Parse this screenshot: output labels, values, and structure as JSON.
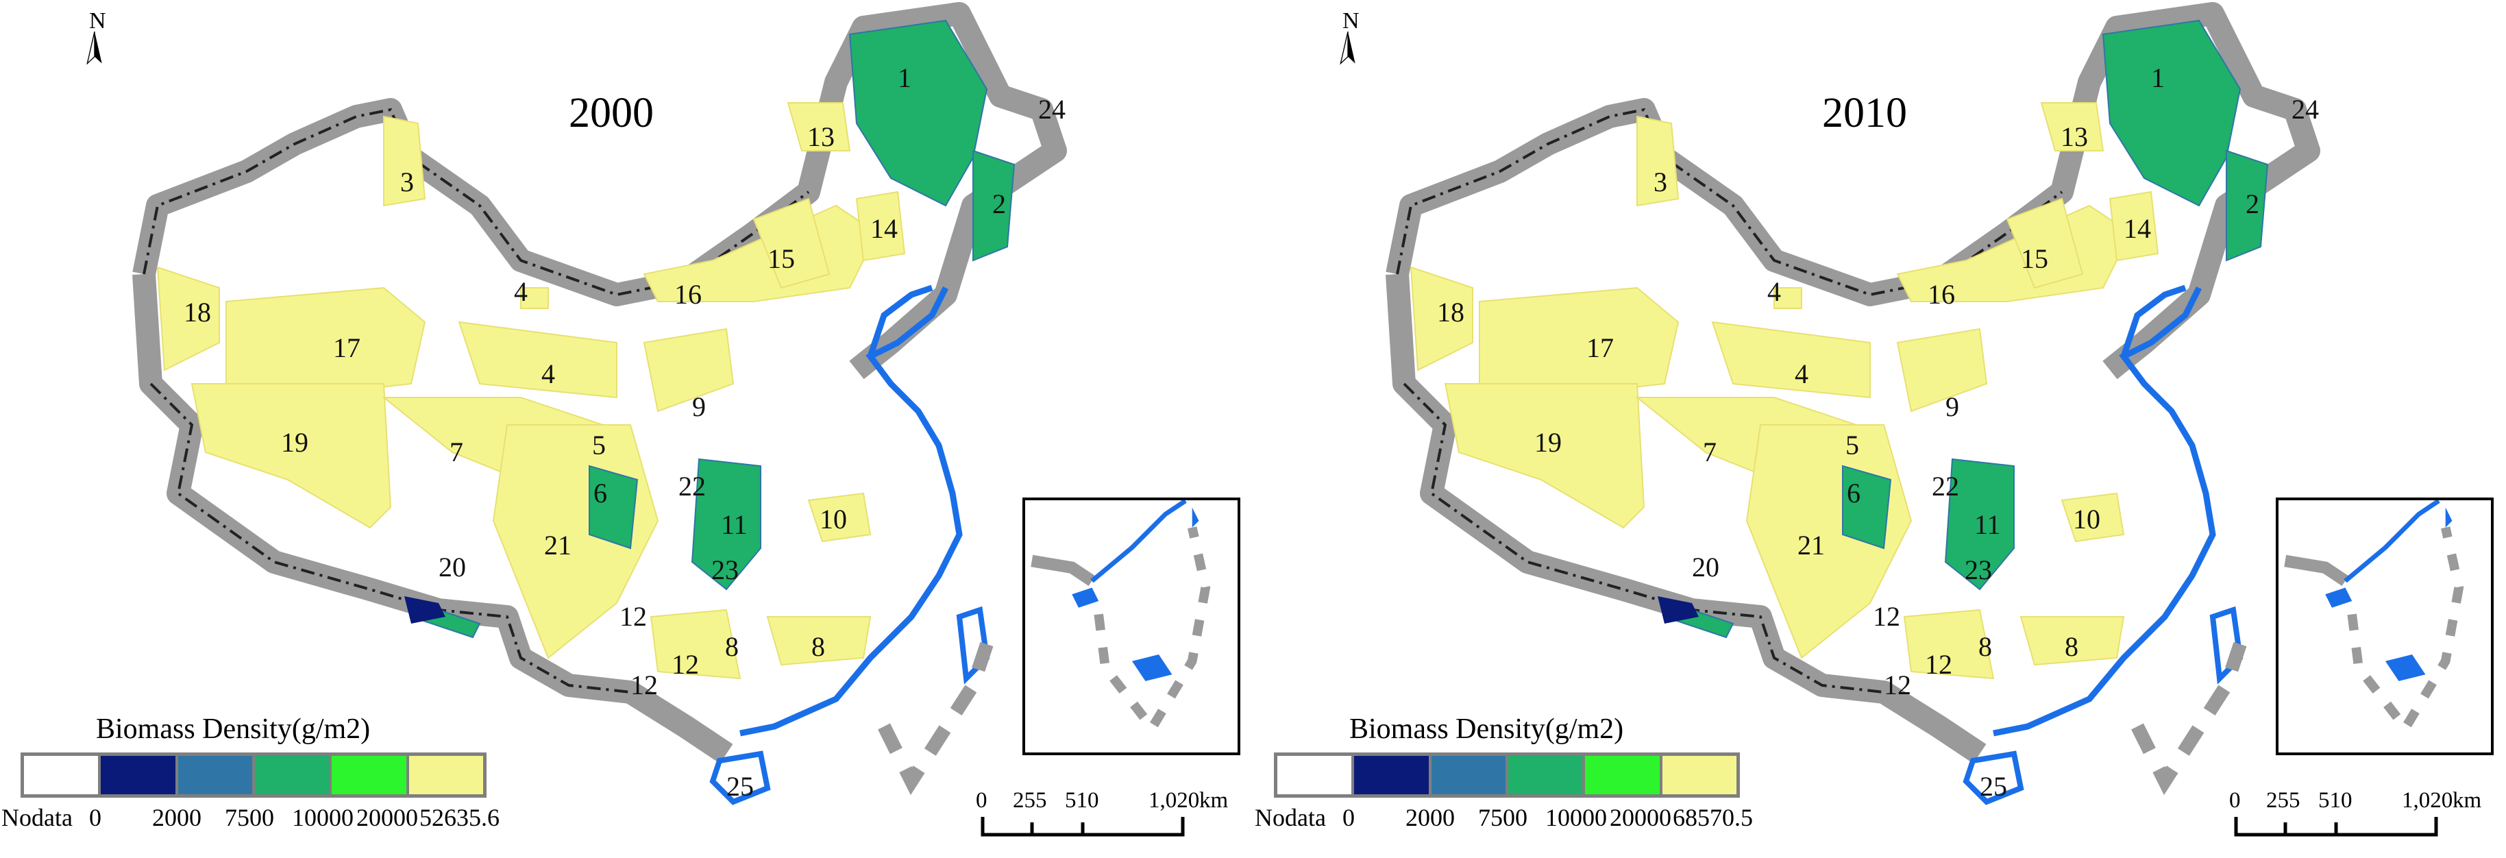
{
  "panels": [
    {
      "year": "2000",
      "north_label": "N",
      "legend": {
        "title": "Biomass Density(g/m2)",
        "tick_labels": [
          "Nodata",
          "0",
          "2000",
          "7500",
          "10000",
          "20000",
          "52635.6"
        ]
      },
      "scale_bar": {
        "labels": [
          "0",
          "255",
          "510",
          "1,020"
        ],
        "unit": "km"
      },
      "regions": [
        "1",
        "24",
        "13",
        "3",
        "2",
        "14",
        "15",
        "16",
        "4",
        "18",
        "17",
        "4",
        "9",
        "19",
        "7",
        "5",
        "6",
        "22",
        "11",
        "10",
        "21",
        "23",
        "20",
        "12",
        "8",
        "8",
        "12",
        "12",
        "25"
      ]
    },
    {
      "year": "2010",
      "north_label": "N",
      "legend": {
        "title": "Biomass Density(g/m2)",
        "tick_labels": [
          "Nodata",
          "0",
          "2000",
          "7500",
          "10000",
          "20000",
          "68570.5"
        ]
      },
      "scale_bar": {
        "labels": [
          "0",
          "255",
          "510",
          "1,020"
        ],
        "unit": "km"
      },
      "regions": [
        "1",
        "24",
        "13",
        "3",
        "2",
        "14",
        "15",
        "16",
        "4",
        "18",
        "17",
        "4",
        "9",
        "19",
        "7",
        "5",
        "6",
        "22",
        "11",
        "10",
        "21",
        "23",
        "20",
        "12",
        "8",
        "8",
        "12",
        "12",
        "25"
      ]
    }
  ],
  "colors": {
    "nodata": "#ffffff",
    "class_0_2000": "#0a1a78",
    "class_2000_7500": "#2f76a6",
    "class_7500_10000": "#1fb06a",
    "class_10000_20000": "#2df52d",
    "class_20000_max": "#f5f590",
    "boundary_grey": "#9a9a9a",
    "coastline_blue": "#1a6fe8"
  }
}
